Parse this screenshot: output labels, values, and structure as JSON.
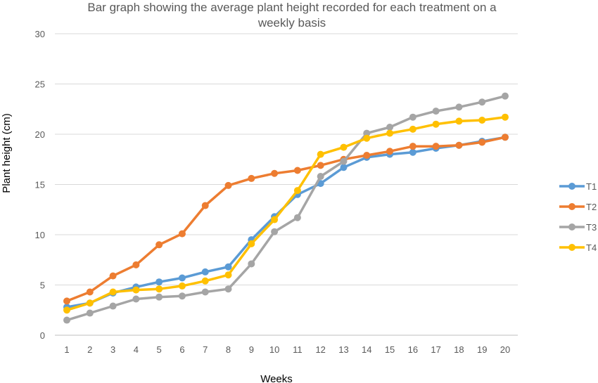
{
  "chart_data": {
    "type": "line",
    "title_lines": [
      "Bar graph showing the average plant height recorded for each treatment on a",
      "weekly basis"
    ],
    "xlabel": "Weeks",
    "ylabel": "Plant height (cm)",
    "ylim": [
      0,
      30
    ],
    "yticks": [
      0,
      5,
      10,
      15,
      20,
      25,
      30
    ],
    "x": [
      1,
      2,
      3,
      4,
      5,
      6,
      7,
      8,
      9,
      10,
      11,
      12,
      13,
      14,
      15,
      16,
      17,
      18,
      19,
      20
    ],
    "grid": true,
    "legend_position": "right",
    "series": [
      {
        "name": "T1",
        "color": "#5B9BD5",
        "values": [
          2.8,
          3.2,
          4.2,
          4.8,
          5.3,
          5.7,
          6.3,
          6.8,
          9.5,
          11.8,
          14.0,
          15.1,
          16.7,
          17.7,
          18.0,
          18.2,
          18.6,
          18.9,
          19.3,
          19.7
        ]
      },
      {
        "name": "T2",
        "color": "#ED7D31",
        "values": [
          3.4,
          4.3,
          5.9,
          7.0,
          9.0,
          10.1,
          12.9,
          14.9,
          15.6,
          16.1,
          16.4,
          16.9,
          17.5,
          17.9,
          18.3,
          18.8,
          18.8,
          18.9,
          19.2,
          19.7
        ]
      },
      {
        "name": "T3",
        "color": "#A5A5A5",
        "values": [
          1.5,
          2.2,
          2.9,
          3.6,
          3.8,
          3.9,
          4.3,
          4.6,
          7.1,
          10.3,
          11.7,
          15.8,
          17.3,
          20.1,
          20.7,
          21.7,
          22.3,
          22.7,
          23.2,
          23.8
        ]
      },
      {
        "name": "T4",
        "color": "#FFC000",
        "values": [
          2.5,
          3.2,
          4.3,
          4.5,
          4.6,
          4.9,
          5.4,
          6.0,
          9.1,
          11.5,
          14.4,
          18.0,
          18.7,
          19.6,
          20.1,
          20.5,
          21.0,
          21.3,
          21.4,
          21.7
        ]
      }
    ]
  }
}
